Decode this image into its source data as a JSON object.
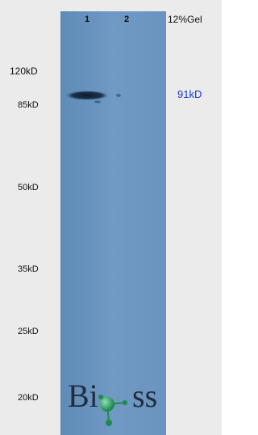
{
  "lanes": [
    "1",
    "2"
  ],
  "gel": "12%Gel",
  "markers": [
    "120kD",
    "85kD",
    "50kD",
    "35kD",
    "25kD",
    "20kD"
  ],
  "band_label": "91kD",
  "logo": {
    "left": "Bi",
    "right": "ss"
  }
}
